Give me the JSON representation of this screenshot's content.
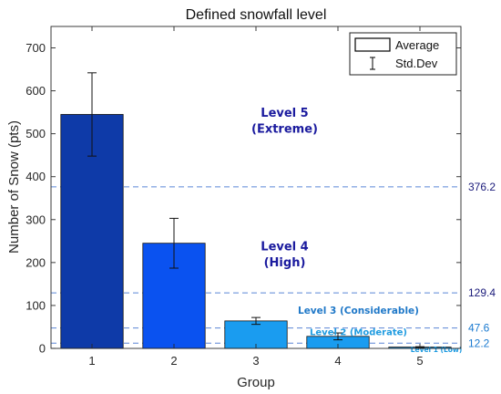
{
  "chart_data": {
    "type": "bar",
    "title": "Defined snowfall level",
    "xlabel": "Group",
    "ylabel": "Number of Snow (pts)",
    "ylim": [
      0,
      750
    ],
    "yticks": [
      0,
      100,
      200,
      300,
      400,
      500,
      600,
      700
    ],
    "categories": [
      "1",
      "2",
      "3",
      "4",
      "5"
    ],
    "values": [
      545,
      245,
      64,
      28,
      3
    ],
    "std_dev": [
      97,
      58,
      8,
      8,
      1
    ],
    "bar_colors": [
      "#0e3aa8",
      "#0a52f0",
      "#1a9cf0",
      "#1a9cf0",
      "#1a9cf0"
    ],
    "grid": false,
    "legend": {
      "position": "top-right",
      "entries": [
        "Average",
        "Std.Dev"
      ]
    },
    "thresholds": [
      {
        "value": 376.2,
        "label": "376.2",
        "color": "#1a1a7a"
      },
      {
        "value": 129.4,
        "label": "129.4",
        "color": "#1a1a7a"
      },
      {
        "value": 47.6,
        "label": "47.6",
        "color": "#1a7ad0"
      },
      {
        "value": 12.2,
        "label": "12.2",
        "color": "#1a7ad0"
      }
    ],
    "threshold_line_color": "#5b86d6",
    "level_annotations": [
      {
        "lines": [
          "Level 5",
          "(Extreme)"
        ],
        "x": 3.35,
        "y": 540,
        "color": "#1a1a9e",
        "size": 13
      },
      {
        "lines": [
          "Level 4",
          "(High)"
        ],
        "x": 3.35,
        "y": 228,
        "color": "#1a1a9e",
        "size": 13
      },
      {
        "lines": [
          "Level 3 (Considerable)"
        ],
        "x": 4.25,
        "y": 81,
        "color": "#1f78c8",
        "size": 10.5
      },
      {
        "lines": [
          "Level 2 (Moderate)"
        ],
        "x": 4.25,
        "y": 31,
        "color": "#1f9be0",
        "size": 10
      },
      {
        "lines": [
          "Level 1 (Low)"
        ],
        "x": 5.2,
        "y": -9,
        "color": "#1f9be0",
        "size": 7.5
      }
    ]
  }
}
